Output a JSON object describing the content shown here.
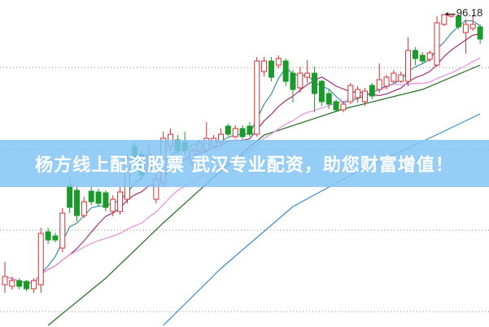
{
  "banner": {
    "text": "杨方线上配资股票 武汉专业配资，助您财富增值！"
  },
  "colors": {
    "up": "#d03030",
    "down": "#1a9a2a",
    "ma5": "#3a8fa0",
    "ma10": "#a0307a",
    "ma20": "#e890e0",
    "long1": "#1e6e1e",
    "long2": "#3a8ad0",
    "banner": "#82c4f5",
    "grid": "#888888"
  },
  "chart_data": {
    "type": "candlestick",
    "title": "",
    "grid": true,
    "grid_levels": [
      4.75,
      29.75,
      54.5,
      79.75
    ],
    "high_label": "96.18",
    "high_value": 96.18,
    "ohlc": [
      [
        13,
        20,
        10.5,
        15.5
      ],
      [
        12.5,
        15.5,
        11.5,
        14.25
      ],
      [
        14.25,
        15,
        11.5,
        12.5
      ],
      [
        14,
        14.5,
        11,
        11.75
      ],
      [
        11.75,
        15,
        10.5,
        14.25
      ],
      [
        13,
        30.5,
        10.5,
        28.75
      ],
      [
        29.25,
        30.5,
        25.5,
        26.75
      ],
      [
        28,
        29,
        26,
        26.75
      ],
      [
        24.25,
        36.5,
        23,
        35
      ],
      [
        43.5,
        46,
        35,
        36.75
      ],
      [
        42,
        43,
        32.5,
        34.25
      ],
      [
        34.25,
        40,
        33.5,
        38.5
      ],
      [
        41.75,
        43,
        37.5,
        38.5
      ],
      [
        41.5,
        42.5,
        37,
        38
      ],
      [
        41.25,
        42,
        35.5,
        36.75
      ],
      [
        35.5,
        40.5,
        34,
        39.25
      ],
      [
        35.5,
        43,
        34.5,
        41.5
      ],
      [
        39.25,
        53,
        38,
        51.75
      ],
      [
        55.5,
        57,
        49,
        50.5
      ],
      [
        53,
        54,
        45,
        46.75
      ],
      [
        48,
        56,
        47,
        53
      ],
      [
        39.25,
        47,
        38,
        45.5
      ],
      [
        44.25,
        60,
        43,
        58
      ],
      [
        55.5,
        61,
        54,
        59.25
      ],
      [
        57.5,
        59,
        53,
        54.25
      ],
      [
        56.75,
        60,
        53,
        54.25
      ],
      [
        50.5,
        55,
        49.5,
        54.25
      ],
      [
        54.25,
        57.5,
        53.5,
        56.75
      ],
      [
        54.25,
        63,
        53.5,
        58
      ],
      [
        55.5,
        59,
        55,
        58
      ],
      [
        56.75,
        61,
        56,
        59.25
      ],
      [
        61.75,
        62.5,
        58.5,
        59.25
      ],
      [
        58.5,
        62,
        58,
        61
      ],
      [
        61,
        62,
        57.5,
        58.5
      ],
      [
        61.75,
        63,
        58.5,
        59.25
      ],
      [
        59.25,
        83,
        58.5,
        81.75
      ],
      [
        78.5,
        83,
        77,
        81.75
      ],
      [
        81.75,
        83,
        75.5,
        76.75
      ],
      [
        80.5,
        83.5,
        79.5,
        82.5
      ],
      [
        81.75,
        82.5,
        74,
        75.5
      ],
      [
        78,
        79,
        69,
        73
      ],
      [
        73.5,
        80,
        72,
        78
      ],
      [
        76.75,
        82,
        75,
        78
      ],
      [
        78,
        80,
        66,
        71.75
      ],
      [
        75.5,
        76,
        68,
        69.25
      ],
      [
        71.75,
        73,
        67,
        68.5
      ],
      [
        69.25,
        70,
        66,
        66.75
      ],
      [
        66.75,
        69.5,
        66,
        68.5
      ],
      [
        69.25,
        75,
        68.5,
        74.25
      ],
      [
        70.5,
        74,
        69,
        73
      ],
      [
        69.25,
        73.5,
        68,
        72.5
      ],
      [
        74.25,
        75,
        70,
        71
      ],
      [
        73,
        81,
        72,
        76
      ],
      [
        74,
        77.5,
        73,
        76.75
      ],
      [
        75.5,
        79,
        75,
        78
      ],
      [
        75.5,
        78.5,
        75,
        77.5
      ],
      [
        75.5,
        89,
        74,
        85
      ],
      [
        85,
        86,
        80.5,
        82.5
      ],
      [
        83.5,
        84.5,
        81,
        81.75
      ],
      [
        82.25,
        85,
        81.5,
        84.25
      ],
      [
        80.5,
        95.5,
        80,
        93.5
      ],
      [
        93,
        96.18,
        92.5,
        96
      ],
      [
        95.5,
        96.1,
        95,
        96
      ],
      [
        95.5,
        96,
        91.5,
        92.25
      ],
      [
        90.5,
        94.5,
        84,
        93
      ],
      [
        91.75,
        96,
        91,
        93
      ],
      [
        92.25,
        93,
        87,
        88.5
      ]
    ],
    "moving_averages": [
      5,
      10,
      20
    ],
    "long_lines": [
      {
        "points": [
          [
            6,
            0.5
          ],
          [
            14,
            15
          ],
          [
            22,
            32
          ],
          [
            30,
            48
          ],
          [
            36,
            59
          ],
          [
            47,
            67
          ],
          [
            58,
            73
          ],
          [
            66,
            80.5
          ]
        ]
      },
      {
        "points": [
          [
            22,
            0.5
          ],
          [
            30,
            18
          ],
          [
            40,
            37
          ],
          [
            50,
            49
          ],
          [
            58,
            57
          ],
          [
            66,
            65.5
          ]
        ]
      }
    ],
    "ylim": [
      0,
      100.5
    ]
  }
}
